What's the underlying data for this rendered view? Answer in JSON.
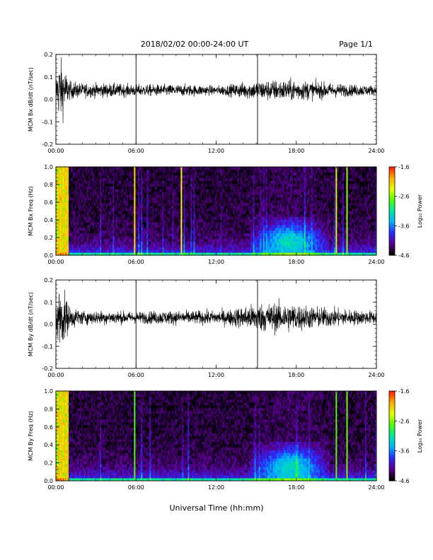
{
  "header": {
    "title": "2018/02/02  00:00-24:00 UT",
    "page": "Page 1/1"
  },
  "colors": {
    "trace": "#000000",
    "colormap": [
      "#000000",
      "#5a0090",
      "#2a2aff",
      "#00b4ff",
      "#00e6a0",
      "#4cff00",
      "#e6ff00",
      "#ffb000",
      "#ff2000"
    ]
  },
  "chart_data": [
    {
      "type": "line",
      "panel": "timeseries",
      "ylabel": "MCM Bx dB/dt (nT/sec)",
      "xlim": [
        "00:00",
        "24:00"
      ],
      "ylim": [
        -0.2,
        0.2
      ],
      "yticks": [
        "0.2",
        "0.1",
        "0.0",
        "-0.1",
        "-0.2"
      ],
      "xticks": [
        "00:00",
        "06:00",
        "12:00",
        "18:00",
        "24:00"
      ],
      "vertical_markers_hours": [
        6.0,
        15.1
      ],
      "baseline": 0.04,
      "amplitude_envelope": {
        "x_hours": [
          0,
          0.3,
          0.7,
          1.0,
          2,
          4,
          6,
          8,
          10,
          12,
          13,
          14,
          15,
          16,
          17,
          18,
          19,
          20,
          21,
          22,
          23,
          24
        ],
        "y_halfwidth": [
          0.06,
          0.14,
          0.09,
          0.04,
          0.03,
          0.03,
          0.025,
          0.025,
          0.025,
          0.02,
          0.025,
          0.035,
          0.04,
          0.045,
          0.045,
          0.045,
          0.04,
          0.035,
          0.03,
          0.025,
          0.025,
          0.02
        ]
      }
    },
    {
      "type": "heatmap",
      "panel": "spectrogram",
      "ylabel": "MCM Bx Freq (Hz)",
      "colorbar_label": "Log₁₀ Power",
      "colorbar_ticks": [
        "-1.6",
        "-2.6",
        "-3.6",
        "-4.6"
      ],
      "clim": [
        -4.6,
        -1.6
      ],
      "xlim": [
        "00:00",
        "24:00"
      ],
      "ylim": [
        0.0,
        1.0
      ],
      "yticks": [
        "1.0",
        "0.8",
        "0.6",
        "0.4",
        "0.2",
        "0.0"
      ],
      "xticks": [
        "00:00",
        "06:00",
        "12:00",
        "18:00",
        "24:00"
      ],
      "broadband_lines_hours": [
        0.25,
        0.45,
        0.65,
        0.85,
        5.9,
        9.4,
        21.0,
        21.8
      ],
      "activity_hours": [
        [
          14.5,
          20.5
        ]
      ]
    },
    {
      "type": "line",
      "panel": "timeseries",
      "ylabel": "MCM By dB/dt (nT/sec)",
      "xlim": [
        "00:00",
        "24:00"
      ],
      "ylim": [
        -0.2,
        0.2
      ],
      "yticks": [
        "0.2",
        "0.1",
        "0.0",
        "-0.1",
        "-0.2"
      ],
      "xticks": [
        "00:00",
        "06:00",
        "12:00",
        "18:00",
        "24:00"
      ],
      "vertical_markers_hours": [
        6.0,
        15.1
      ],
      "baseline": 0.03,
      "amplitude_envelope": {
        "x_hours": [
          0,
          0.3,
          0.7,
          1.0,
          2,
          4,
          6,
          8,
          10,
          12,
          13,
          14,
          15,
          16,
          17,
          18,
          19,
          20,
          21,
          22,
          23,
          24
        ],
        "y_halfwidth": [
          0.07,
          0.15,
          0.1,
          0.05,
          0.03,
          0.03,
          0.025,
          0.03,
          0.03,
          0.03,
          0.035,
          0.05,
          0.06,
          0.065,
          0.065,
          0.06,
          0.05,
          0.045,
          0.04,
          0.035,
          0.03,
          0.03
        ]
      }
    },
    {
      "type": "heatmap",
      "panel": "spectrogram",
      "ylabel": "MCM By Freq (Hz)",
      "colorbar_label": "Log₁₀ Power",
      "colorbar_ticks": [
        "-1.6",
        "-2.6",
        "-3.6",
        "-4.6"
      ],
      "clim": [
        -4.6,
        -1.6
      ],
      "xlim": [
        "00:00",
        "24:00"
      ],
      "ylim": [
        0.0,
        1.0
      ],
      "yticks": [
        "1.0",
        "0.8",
        "0.6",
        "0.4",
        "0.2",
        "0.0"
      ],
      "xticks": [
        "00:00",
        "06:00",
        "12:00",
        "18:00",
        "24:00"
      ],
      "broadband_lines_hours": [
        0.25,
        0.45,
        0.65,
        0.85,
        5.9,
        21.0,
        21.8
      ],
      "activity_hours": [
        [
          14.5,
          20.5
        ]
      ],
      "xlabel": "Universal Time (hh:mm)"
    }
  ]
}
